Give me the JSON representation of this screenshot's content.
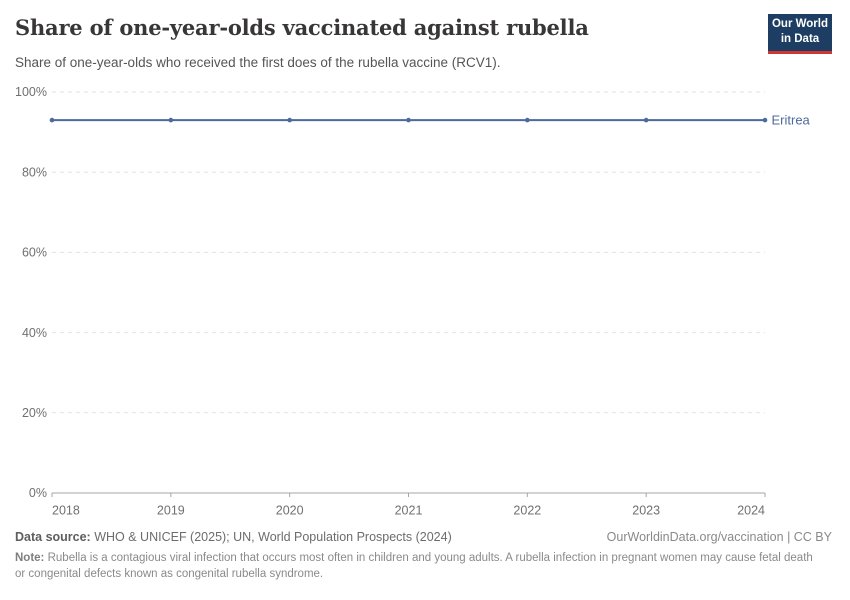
{
  "header": {
    "title": "Share of one-year-olds vaccinated against rubella",
    "subtitle": "Share of one-year-olds who received the first does of the rubella vaccine (RCV1).",
    "logo": {
      "line1": "Our World",
      "line2": "in Data"
    }
  },
  "chart_data": {
    "type": "line",
    "title": "Share of one-year-olds vaccinated against rubella",
    "x": [
      2018,
      2019,
      2020,
      2021,
      2022,
      2023,
      2024
    ],
    "series": [
      {
        "name": "Eritrea",
        "values": [
          93,
          93,
          93,
          93,
          93,
          93,
          93
        ],
        "color": "#4c6a9c"
      }
    ],
    "xlabel": "",
    "ylabel": "",
    "ylim": [
      0,
      100
    ],
    "yticks": [
      0,
      20,
      40,
      60,
      80,
      100
    ],
    "ytick_suffix": "%",
    "grid": "dashed-horizontal",
    "legend_position": "end-of-line-label",
    "markers": true
  },
  "footer": {
    "data_source_label": "Data source:",
    "data_source": "WHO & UNICEF (2025); UN, World Population Prospects (2024)",
    "attribution": "OurWorldinData.org/vaccination | CC BY",
    "note_label": "Note:",
    "note": "Rubella is a contagious viral infection that occurs most often in children and young adults. A rubella infection in pregnant women may cause fetal death or congenital defects known as congenital rubella syndrome."
  },
  "colors": {
    "line": "#4c6a9c",
    "grid": "#e2e2e2",
    "axis": "#a5a5a5",
    "tick_label": "#707070",
    "title": "#383636",
    "subtitle": "#555555",
    "logo_bg": "#1d3d63",
    "logo_red": "#d13732"
  }
}
